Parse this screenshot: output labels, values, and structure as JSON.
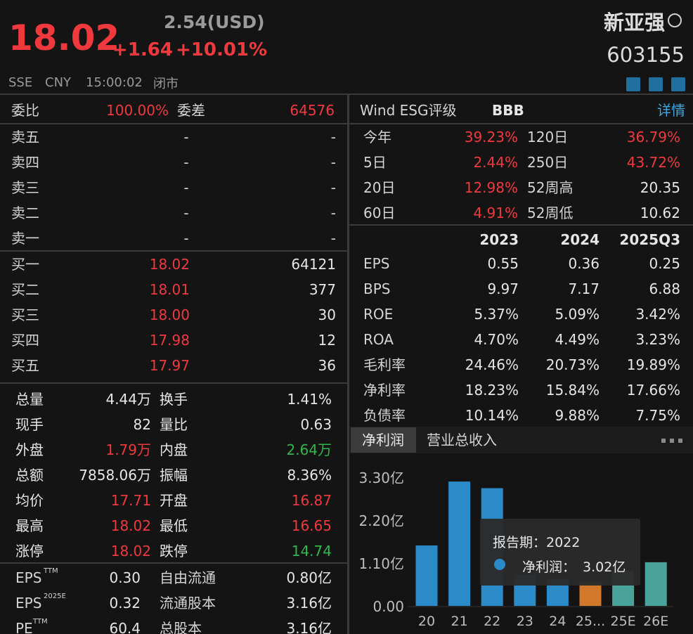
{
  "header": {
    "price": "18.02",
    "usd": "2.54(USD)",
    "change": "+1.64",
    "change_pct": "+10.01%",
    "exchange": "SSE",
    "currency": "CNY",
    "time": "15:00:02",
    "status": "闭市",
    "name": "新亚强",
    "code": "603155"
  },
  "order_book": {
    "ratio_label": "委比",
    "ratio": "100.00%",
    "diff_label": "委差",
    "diff": "64576",
    "asks": [
      [
        "卖五",
        "-",
        "-"
      ],
      [
        "卖四",
        "-",
        "-"
      ],
      [
        "卖三",
        "-",
        "-"
      ],
      [
        "卖二",
        "-",
        "-"
      ],
      [
        "卖一",
        "-",
        "-"
      ]
    ],
    "bids": [
      [
        "买一",
        "18.02",
        "64121"
      ],
      [
        "买二",
        "18.01",
        "377"
      ],
      [
        "买三",
        "18.00",
        "30"
      ],
      [
        "买四",
        "17.98",
        "12"
      ],
      [
        "买五",
        "17.97",
        "36"
      ]
    ]
  },
  "stats": [
    {
      "cells": [
        "总量",
        "4.44万",
        "换手",
        "1.41%"
      ],
      "tones": [
        "w",
        "w",
        "w",
        "w"
      ]
    },
    {
      "cells": [
        "现手",
        "82",
        "量比",
        "0.63"
      ],
      "tones": [
        "w",
        "w",
        "w",
        "w"
      ]
    },
    {
      "cells": [
        "外盘",
        "1.79万",
        "内盘",
        "2.64万"
      ],
      "tones": [
        "w",
        "r",
        "w",
        "g"
      ]
    },
    {
      "cells": [
        "总额",
        "7858.06万",
        "振幅",
        "8.36%"
      ],
      "tones": [
        "w",
        "w",
        "w",
        "w"
      ]
    },
    {
      "cells": [
        "均价",
        "17.71",
        "开盘",
        "16.87"
      ],
      "tones": [
        "w",
        "r",
        "w",
        "r"
      ]
    },
    {
      "cells": [
        "最高",
        "18.02",
        "最低",
        "16.65"
      ],
      "tones": [
        "w",
        "r",
        "w",
        "r"
      ]
    },
    {
      "cells": [
        "涨停",
        "18.02",
        "跌停",
        "14.74"
      ],
      "tones": [
        "w",
        "r",
        "w",
        "g"
      ]
    }
  ],
  "valuation": [
    {
      "label": "EPS",
      "sup": "TTM",
      "value": "0.30",
      "label2": "自由流通",
      "value2": "0.80亿"
    },
    {
      "label": "EPS",
      "sup": "2025E",
      "value": "0.32",
      "label2": "流通股本",
      "value2": "3.16亿"
    },
    {
      "label": "PE",
      "sup": "TTM",
      "value": "60.4",
      "label2": "总股本",
      "value2": "3.16亿"
    }
  ],
  "esg": {
    "label": "Wind ESG评级",
    "rating": "BBB",
    "link": "详情"
  },
  "performance": [
    [
      "今年",
      "39.23%",
      "120日",
      "36.79%"
    ],
    [
      "5日",
      "2.44%",
      "250日",
      "43.72%"
    ],
    [
      "20日",
      "12.98%",
      "52周高",
      "20.35"
    ],
    [
      "60日",
      "4.91%",
      "52周低",
      "10.62"
    ]
  ],
  "financials": {
    "columns": [
      "2023",
      "2024",
      "2025Q3"
    ],
    "rows": [
      [
        "EPS",
        "0.55",
        "0.36",
        "0.25"
      ],
      [
        "BPS",
        "9.97",
        "7.17",
        "6.88"
      ],
      [
        "ROE",
        "5.37%",
        "5.09%",
        "3.42%"
      ],
      [
        "ROA",
        "4.70%",
        "4.49%",
        "3.23%"
      ],
      [
        "毛利率",
        "24.46%",
        "20.73%",
        "19.89%"
      ],
      [
        "净利率",
        "18.23%",
        "15.84%",
        "17.66%"
      ],
      [
        "负债率",
        "10.14%",
        "9.88%",
        "7.75%"
      ]
    ]
  },
  "tabs": [
    "净利润",
    "营业总收入"
  ],
  "chart": {
    "type": "bar",
    "categories": [
      "20",
      "21",
      "22",
      "23",
      "24",
      "25...",
      "25E",
      "26E"
    ],
    "values": [
      1.55,
      3.19,
      3.02,
      0.8,
      0.7,
      0.6,
      0.9,
      1.12
    ],
    "colors": [
      "#2a8bc8",
      "#2a8bc8",
      "#2a8bc8",
      "#2a8bc8",
      "#2a8bc8",
      "#d2782a",
      "#4aa39b",
      "#4aa39b"
    ],
    "ylim": [
      0,
      3.3
    ],
    "yticks": [
      {
        "value": 0,
        "label": "0.00"
      },
      {
        "value": 1.1,
        "label": "1.10亿"
      },
      {
        "value": 2.2,
        "label": "2.20亿"
      },
      {
        "value": 3.3,
        "label": "3.30亿"
      }
    ],
    "tooltip": {
      "period": "报告期：2022",
      "label": "净利润：",
      "value": "3.02亿"
    }
  }
}
